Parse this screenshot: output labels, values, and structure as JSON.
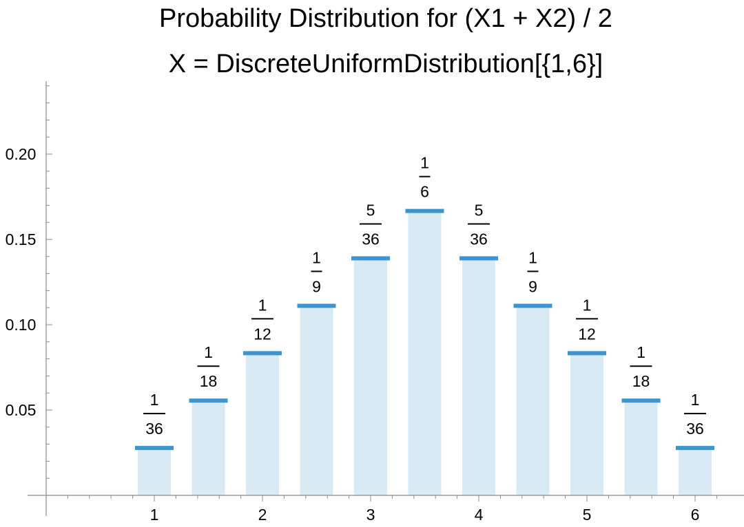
{
  "chart_data": {
    "type": "bar",
    "title": "Probability Distribution for (X1 + X2) / 2",
    "subtitle": "X = DiscreteUniformDistribution[{1,6}]",
    "x": [
      1,
      1.5,
      2,
      2.5,
      3,
      3.5,
      4,
      4.5,
      5,
      5.5,
      6
    ],
    "values": [
      0.027778,
      0.055556,
      0.083333,
      0.111111,
      0.138889,
      0.166667,
      0.138889,
      0.111111,
      0.083333,
      0.055556,
      0.027778
    ],
    "labels": [
      {
        "num": "1",
        "den": "36"
      },
      {
        "num": "1",
        "den": "18"
      },
      {
        "num": "1",
        "den": "12"
      },
      {
        "num": "1",
        "den": "9"
      },
      {
        "num": "5",
        "den": "36"
      },
      {
        "num": "1",
        "den": "6"
      },
      {
        "num": "5",
        "den": "36"
      },
      {
        "num": "1",
        "den": "9"
      },
      {
        "num": "1",
        "den": "12"
      },
      {
        "num": "1",
        "den": "18"
      },
      {
        "num": "1",
        "den": "36"
      }
    ],
    "x_ticks": [
      "1",
      "2",
      "3",
      "4",
      "5",
      "6"
    ],
    "y_ticks": [
      "0.05",
      "0.10",
      "0.15",
      "0.20"
    ],
    "xlim": [
      0,
      6.3
    ],
    "ylim": [
      0,
      0.24
    ],
    "grid": false,
    "colors": {
      "bar_fill": "#d8eaf4",
      "bar_top": "#3e95cd",
      "axis": "#8a8a8a"
    }
  }
}
